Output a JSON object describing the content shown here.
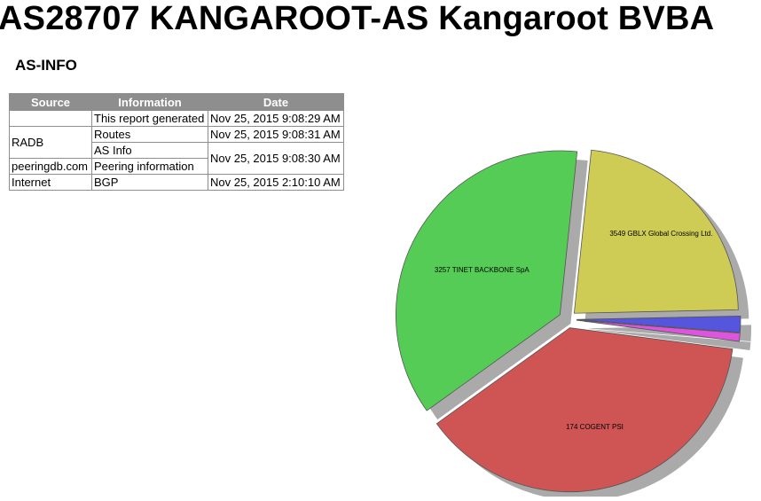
{
  "header": {
    "title": "AS28707 KANGAROOT-AS Kangaroot BVBA"
  },
  "section": {
    "title": "AS-INFO"
  },
  "table": {
    "headers": [
      "Source",
      "Information",
      "Date"
    ],
    "rows": [
      {
        "source": "",
        "information": "This report generated",
        "date": "Nov 25, 2015 9:08:29 AM"
      },
      {
        "source": "RADB",
        "information": "Routes",
        "date": "Nov 25, 2015 9:08:31 AM"
      },
      {
        "information": "AS Info",
        "date": "Nov 25, 2015 9:08:30 AM"
      },
      {
        "source": "peeringdb.com",
        "information": "Peering information"
      },
      {
        "source": "Internet",
        "information": "BGP",
        "date": "Nov 25, 2015 2:10:10 AM"
      }
    ]
  },
  "chart_data": {
    "type": "pie",
    "title": "",
    "slices": [
      {
        "label": "3549 GBLX Global Crossing Ltd.",
        "value": 23.0,
        "color": "#cfcc55"
      },
      {
        "label": "",
        "value": 1.6,
        "color": "#5555dd"
      },
      {
        "label": "",
        "value": 0.8,
        "color": "#dd55dd"
      },
      {
        "label": "174 COGENT PSI",
        "value": 38.0,
        "color": "#cf5555"
      },
      {
        "label": "3257 TINET BACKBONE SpA",
        "value": 36.6,
        "color": "#55cc55"
      }
    ],
    "exploded": true,
    "shadow": true
  }
}
